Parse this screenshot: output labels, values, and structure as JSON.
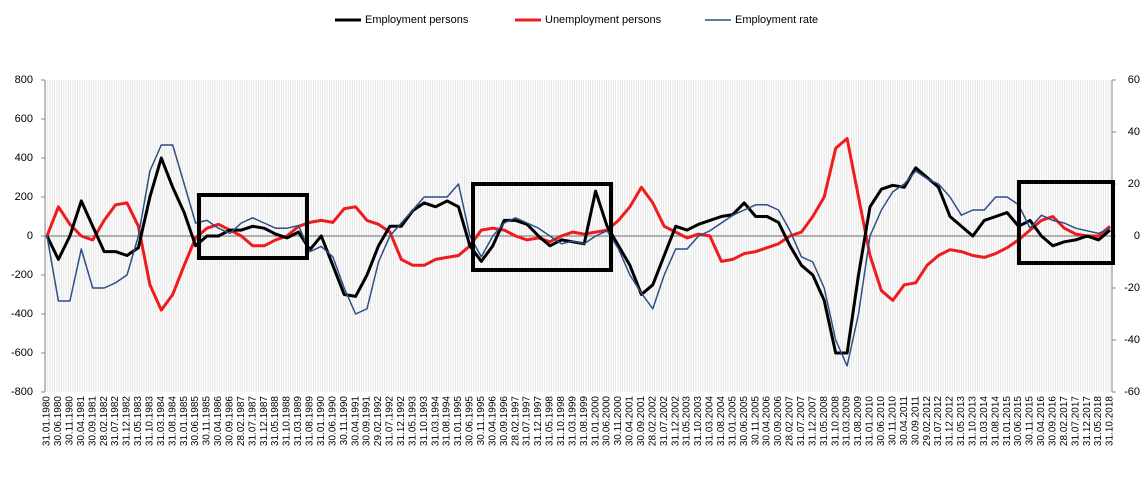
{
  "chart_data": {
    "type": "line",
    "categories": [
      "31.01.1980",
      "30.06.1980",
      "30.11.1980",
      "30.04.1981",
      "30.09.1981",
      "28.02.1982",
      "31.07.1982",
      "31.12.1982",
      "31.05.1983",
      "31.10.1983",
      "31.03.1984",
      "31.08.1984",
      "31.01.1985",
      "30.06.1985",
      "30.11.1985",
      "30.04.1986",
      "30.09.1986",
      "28.02.1987",
      "31.07.1987",
      "31.12.1987",
      "31.05.1988",
      "31.10.1988",
      "31.03.1989",
      "31.08.1989",
      "31.01.1990",
      "30.06.1990",
      "30.11.1990",
      "30.04.1991",
      "30.09.1991",
      "29.02.1992",
      "31.07.1992",
      "31.12.1992",
      "31.05.1993",
      "31.10.1993",
      "31.03.1994",
      "31.08.1994",
      "31.01.1995",
      "30.06.1995",
      "30.11.1995",
      "30.04.1996",
      "30.09.1996",
      "28.02.1997",
      "31.07.1997",
      "31.12.1997",
      "31.05.1998",
      "31.10.1998",
      "31.03.1999",
      "31.08.1999",
      "31.01.2000",
      "30.06.2000",
      "30.11.2000",
      "30.04.2001",
      "30.09.2001",
      "28.02.2002",
      "31.07.2002",
      "31.12.2002",
      "31.05.2003",
      "31.10.2003",
      "31.03.2004",
      "31.08.2004",
      "31.01.2005",
      "30.06.2005",
      "30.11.2005",
      "30.04.2006",
      "30.09.2006",
      "28.02.2007",
      "31.07.2007",
      "31.12.2007",
      "31.05.2008",
      "31.10.2008",
      "31.03.2009",
      "31.08.2009",
      "31.01.2010",
      "30.06.2010",
      "30.11.2010",
      "30.04.2011",
      "30.09.2011",
      "29.02.2012",
      "31.07.2012",
      "31.12.2012",
      "31.05.2013",
      "31.10.2013",
      "31.03.2014",
      "31.08.2014",
      "31.01.2015",
      "30.06.2015",
      "30.11.2015",
      "30.04.2016",
      "30.09.2016",
      "28.02.2017",
      "31.07.2017",
      "31.12.2017",
      "31.05.2018",
      "31.10.2018"
    ],
    "series": [
      {
        "name": "Employment persons",
        "color": "#000000",
        "width": 3,
        "values": [
          0,
          -120,
          0,
          180,
          50,
          -80,
          -80,
          -100,
          -60,
          200,
          400,
          250,
          120,
          -50,
          0,
          0,
          30,
          30,
          50,
          40,
          10,
          -10,
          20,
          -70,
          0,
          -150,
          -300,
          -310,
          -200,
          -50,
          50,
          50,
          130,
          170,
          150,
          180,
          150,
          -50,
          -130,
          -50,
          80,
          80,
          60,
          0,
          -50,
          -20,
          -30,
          -40,
          230,
          50,
          -50,
          -150,
          -300,
          -250,
          -100,
          50,
          30,
          60,
          80,
          100,
          110,
          170,
          100,
          100,
          70,
          -50,
          -150,
          -200,
          -330,
          -600,
          -600,
          -200,
          150,
          240,
          260,
          250,
          350,
          300,
          250,
          100,
          50,
          0,
          80,
          100,
          120,
          50,
          80,
          0,
          -50,
          -30,
          -20,
          0,
          -20,
          30
        ]
      },
      {
        "name": "Unemployment persons",
        "color": "#ee1c1c",
        "width": 3,
        "values": [
          0,
          150,
          60,
          0,
          -20,
          80,
          160,
          170,
          50,
          -250,
          -380,
          -300,
          -150,
          -10,
          40,
          60,
          30,
          0,
          -50,
          -50,
          -20,
          0,
          50,
          70,
          80,
          70,
          140,
          150,
          80,
          60,
          20,
          -120,
          -150,
          -150,
          -120,
          -110,
          -100,
          -50,
          30,
          40,
          30,
          0,
          -20,
          -10,
          -30,
          0,
          20,
          10,
          20,
          30,
          80,
          150,
          250,
          170,
          50,
          20,
          -10,
          10,
          0,
          -130,
          -120,
          -90,
          -80,
          -60,
          -40,
          0,
          20,
          100,
          200,
          450,
          500,
          200,
          -100,
          -280,
          -330,
          -250,
          -240,
          -150,
          -100,
          -70,
          -80,
          -100,
          -110,
          -90,
          -60,
          -20,
          30,
          80,
          100,
          40,
          10,
          0,
          0,
          50
        ]
      },
      {
        "name": "Employment rate",
        "color": "#2e4e84",
        "width": 1.5,
        "axis": "y2",
        "values": [
          0,
          -25,
          -25,
          -5,
          -20,
          -20,
          -18,
          -15,
          0,
          25,
          35,
          35,
          20,
          5,
          6,
          3,
          1,
          5,
          7,
          5,
          3,
          3,
          4,
          -6,
          -4,
          -8,
          -20,
          -30,
          -28,
          -10,
          0,
          5,
          10,
          15,
          15,
          15,
          20,
          0,
          -8,
          0,
          5,
          7,
          5,
          3,
          0,
          -3,
          -2,
          -3,
          0,
          2,
          -5,
          -15,
          -22,
          -28,
          -15,
          -5,
          -5,
          0,
          2,
          5,
          8,
          10,
          12,
          12,
          10,
          2,
          -8,
          -10,
          -20,
          -40,
          -50,
          -30,
          0,
          10,
          17,
          20,
          25,
          22,
          20,
          15,
          8,
          10,
          10,
          15,
          15,
          12,
          3,
          8,
          6,
          5,
          3,
          2,
          1,
          3
        ]
      }
    ],
    "ylim": [
      -800,
      800
    ],
    "yticks": [
      -800,
      -600,
      -400,
      -200,
      0,
      200,
      400,
      600,
      800
    ],
    "y2lim": [
      -60,
      60
    ],
    "y2ticks": [
      -60,
      -40,
      -20,
      0,
      20,
      40,
      60
    ],
    "legend": "top"
  }
}
